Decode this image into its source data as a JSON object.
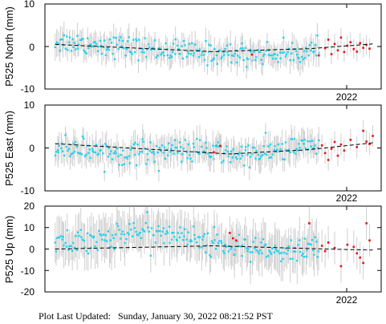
{
  "footer": {
    "label": "Plot Last Updated:",
    "timestamp": "Sunday, January 30, 2022 08:21:52 PST"
  },
  "colors": {
    "daily": "#22d3ee",
    "rapid": "#e8121a",
    "errorbar": "#cfcfcf",
    "trend": "#000000",
    "frame": "#000000"
  },
  "chart_data": [
    {
      "type": "scatter",
      "station": "P525",
      "component": "North",
      "ylabel": "P525 North (mm)",
      "ylim": [
        -10,
        10
      ],
      "yticks": [
        -10,
        0,
        10
      ],
      "xtick_labels": [
        "2022"
      ],
      "trend": [
        [
          0,
          0.5
        ],
        [
          0.5,
          -1.2
        ],
        [
          0.8,
          -0.5
        ],
        [
          1,
          0.6
        ]
      ],
      "daily_mean": [
        [
          0,
          1.2
        ],
        [
          0.15,
          0.4
        ],
        [
          0.3,
          -0.6
        ],
        [
          0.45,
          -1.5
        ],
        [
          0.6,
          -1.8
        ],
        [
          0.75,
          -1.6
        ],
        [
          0.83,
          -0.8
        ]
      ],
      "daily_spread": 1.3,
      "error_bar": 2.6,
      "rapid_points": [
        [
          0.83,
          -2.1
        ],
        [
          0.85,
          -0.4
        ],
        [
          0.86,
          1.6
        ],
        [
          0.87,
          -1.8
        ],
        [
          0.88,
          0.6
        ],
        [
          0.89,
          -0.9
        ],
        [
          0.9,
          2.1
        ],
        [
          0.91,
          -1.3
        ],
        [
          0.92,
          0.2
        ],
        [
          0.93,
          1.0
        ],
        [
          0.94,
          -0.6
        ],
        [
          0.95,
          -1.2
        ],
        [
          0.96,
          0.8
        ],
        [
          0.97,
          -0.3
        ],
        [
          0.98,
          0.4
        ],
        [
          0.99,
          -0.5
        ],
        [
          0.62,
          -1.9
        ]
      ]
    },
    {
      "type": "scatter",
      "station": "P525",
      "component": "East",
      "ylabel": "P525 East (mm)",
      "ylim": [
        -10,
        10
      ],
      "yticks": [
        -10,
        0,
        10
      ],
      "xtick_labels": [
        "2022"
      ],
      "trend": [
        [
          0,
          1.0
        ],
        [
          0.55,
          -1.4
        ],
        [
          0.8,
          -0.4
        ],
        [
          1,
          1.2
        ]
      ],
      "daily_mean": [
        [
          0,
          0.3
        ],
        [
          0.1,
          -0.2
        ],
        [
          0.2,
          -1.3
        ],
        [
          0.3,
          -0.7
        ],
        [
          0.45,
          -0.6
        ],
        [
          0.6,
          -1.8
        ],
        [
          0.72,
          -0.4
        ],
        [
          0.83,
          0.8
        ]
      ],
      "daily_spread": 1.4,
      "error_bar": 2.8,
      "rapid_points": [
        [
          0.84,
          0.6
        ],
        [
          0.85,
          -1.2
        ],
        [
          0.86,
          -2.8
        ],
        [
          0.87,
          -0.2
        ],
        [
          0.88,
          1.4
        ],
        [
          0.89,
          -1.8
        ],
        [
          0.9,
          0.8
        ],
        [
          0.91,
          -0.6
        ],
        [
          0.93,
          1.9
        ],
        [
          0.95,
          0.2
        ],
        [
          0.97,
          4.0
        ],
        [
          0.98,
          1.5
        ],
        [
          0.99,
          0.9
        ],
        [
          1.0,
          2.8
        ],
        [
          0.52,
          0.5
        ],
        [
          0.5,
          -1.0
        ]
      ]
    },
    {
      "type": "scatter",
      "station": "P525",
      "component": "Up",
      "ylabel": "P525 Up (mm)",
      "ylim": [
        -20,
        20
      ],
      "yticks": [
        -20,
        -10,
        0,
        10,
        20
      ],
      "xtick_labels": [
        "2022"
      ],
      "trend": [
        [
          0,
          0
        ],
        [
          0.5,
          1.5
        ],
        [
          0.85,
          0
        ],
        [
          1,
          -0.5
        ]
      ],
      "daily_mean": [
        [
          0,
          2.0
        ],
        [
          0.1,
          4.5
        ],
        [
          0.2,
          6.5
        ],
        [
          0.3,
          9.0
        ],
        [
          0.4,
          6.0
        ],
        [
          0.55,
          1.0
        ],
        [
          0.7,
          -2.0
        ],
        [
          0.85,
          1.0
        ],
        [
          0.95,
          -3.0
        ]
      ],
      "daily_spread": 3.0,
      "error_bar": 8.5,
      "rapid_points": [
        [
          0.55,
          7.5
        ],
        [
          0.56,
          5.0
        ],
        [
          0.57,
          4.0
        ],
        [
          0.8,
          12.0
        ],
        [
          0.84,
          1.5
        ],
        [
          0.85,
          -1.0
        ],
        [
          0.86,
          3.0
        ],
        [
          0.88,
          0.5
        ],
        [
          0.9,
          -8.0
        ],
        [
          0.92,
          2.0
        ],
        [
          0.95,
          -2.0
        ],
        [
          0.97,
          -6.5
        ],
        [
          0.98,
          12.0
        ],
        [
          0.99,
          4.0
        ],
        [
          0.96,
          -4.0
        ],
        [
          0.94,
          1.0
        ]
      ]
    }
  ]
}
